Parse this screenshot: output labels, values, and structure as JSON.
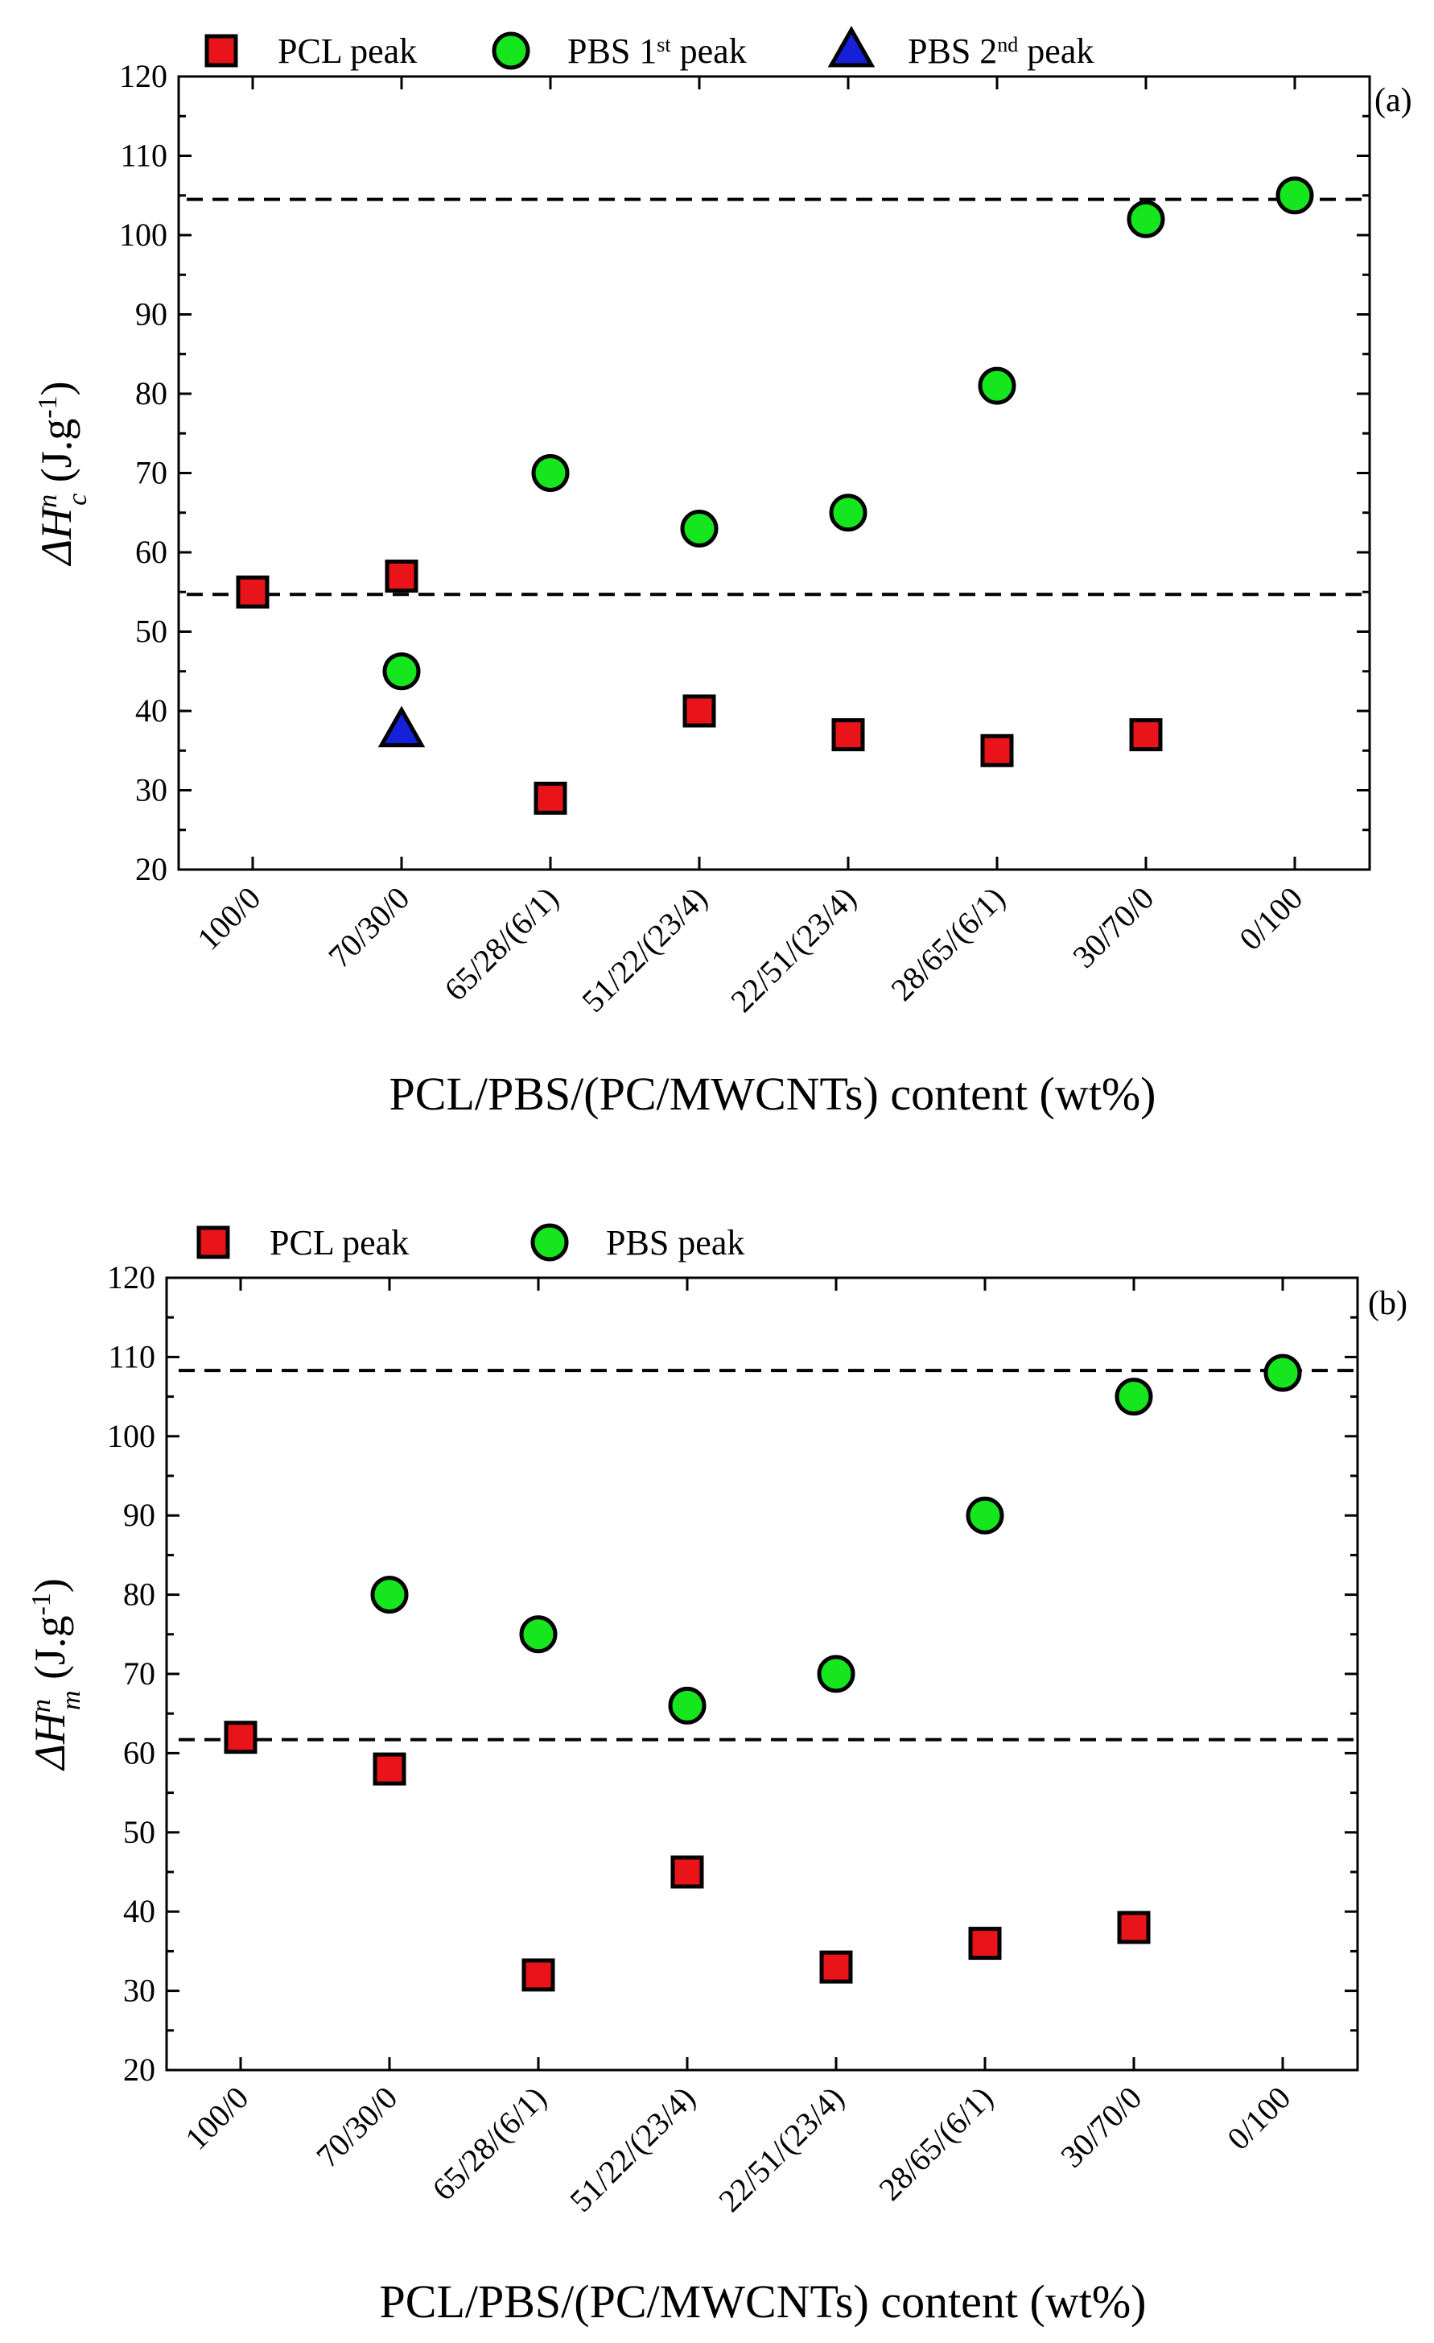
{
  "chart_data": [
    {
      "type": "scatter",
      "panel_label": "(a)",
      "xlabel": "PCL/PBS/(PC/MWCNTs) content (wt%)",
      "ylabel": {
        "main": "ΔH",
        "sup": "n",
        "sub": "c",
        "unit": " (J.g",
        "unit_sup": "-1",
        "unit_end": ")"
      },
      "ylim": [
        20,
        120
      ],
      "yticks": [
        "20",
        "30",
        "40",
        "50",
        "60",
        "70",
        "80",
        "90",
        "100",
        "110",
        "120"
      ],
      "categories": [
        "100/0",
        "70/30/0",
        "65/28/(6/1)",
        "51/22/(23/4)",
        "22/51/(23/4)",
        "28/65/(6/1)",
        "30/70/0",
        "0/100"
      ],
      "series": [
        {
          "name": "PCL peak",
          "marker": "square",
          "color": "#e8141a",
          "values": [
            55,
            57,
            29,
            40,
            37,
            35,
            37,
            null
          ]
        },
        {
          "name": "PBS 1st peak",
          "name_parts": [
            "PBS 1",
            "st",
            " peak"
          ],
          "marker": "circle",
          "color": "#16e61e",
          "values": [
            null,
            45,
            70,
            63,
            65,
            81,
            102,
            105
          ]
        },
        {
          "name": "PBS 2nd peak",
          "name_parts": [
            "PBS 2",
            "nd",
            " peak"
          ],
          "marker": "triangle",
          "color": "#1520d8",
          "values": [
            null,
            37.5,
            null,
            null,
            null,
            null,
            null,
            null
          ]
        }
      ],
      "reference_lines": [
        54.7,
        104.5
      ],
      "legend": "top"
    },
    {
      "type": "scatter",
      "panel_label": "(b)",
      "xlabel": "PCL/PBS/(PC/MWCNTs) content (wt%)",
      "ylabel": {
        "main": "ΔH",
        "sup": "n",
        "sub": "m",
        "unit": " (J.g",
        "unit_sup": "-1",
        "unit_end": ")"
      },
      "ylim": [
        20,
        120
      ],
      "yticks": [
        "20",
        "30",
        "40",
        "50",
        "60",
        "70",
        "80",
        "90",
        "100",
        "110",
        "120"
      ],
      "categories": [
        "100/0",
        "70/30/0",
        "65/28/(6/1)",
        "51/22/(23/4)",
        "22/51/(23/4)",
        "28/65/(6/1)",
        "30/70/0",
        "0/100"
      ],
      "series": [
        {
          "name": "PCL peak",
          "marker": "square",
          "color": "#e8141a",
          "values": [
            62,
            58,
            32,
            45,
            33,
            36,
            38,
            null
          ]
        },
        {
          "name": "PBS peak",
          "marker": "circle",
          "color": "#16e61e",
          "values": [
            null,
            80,
            75,
            66,
            70,
            90,
            105,
            108
          ]
        }
      ],
      "reference_lines": [
        61.7,
        108.3
      ],
      "legend": "top"
    }
  ]
}
